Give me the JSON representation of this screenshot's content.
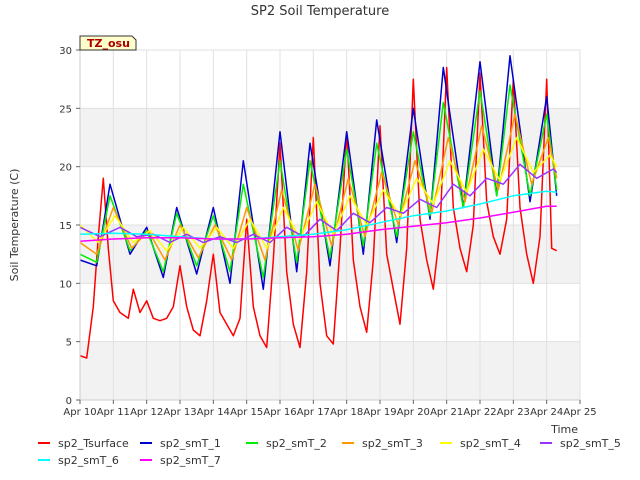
{
  "chart_data": {
    "type": "line",
    "title": "SP2 Soil Temperature",
    "xlabel": "Time",
    "ylabel": "Soil Temperature (C)",
    "xlim": [
      10,
      25
    ],
    "ylim": [
      0,
      30
    ],
    "xticks": [
      {
        "value": 10,
        "label": "Apr 10"
      },
      {
        "value": 11,
        "label": "Apr 11"
      },
      {
        "value": 12,
        "label": "Apr 12"
      },
      {
        "value": 13,
        "label": "Apr 13"
      },
      {
        "value": 14,
        "label": "Apr 14"
      },
      {
        "value": 15,
        "label": "Apr 15"
      },
      {
        "value": 16,
        "label": "Apr 16"
      },
      {
        "value": 17,
        "label": "Apr 17"
      },
      {
        "value": 18,
        "label": "Apr 18"
      },
      {
        "value": 19,
        "label": "Apr 19"
      },
      {
        "value": 20,
        "label": "Apr 20"
      },
      {
        "value": 21,
        "label": "Apr 21"
      },
      {
        "value": 22,
        "label": "Apr 22"
      },
      {
        "value": 23,
        "label": "Apr 23"
      },
      {
        "value": 24,
        "label": "Apr 24"
      },
      {
        "value": 25,
        "label": "Apr 25"
      }
    ],
    "yticks": [
      0,
      5,
      10,
      15,
      20,
      25,
      30
    ],
    "annotation": "TZ_osu",
    "legend_position": "bottom",
    "series": [
      {
        "name": "sp2_Tsurface",
        "color": "#ff0000",
        "x": [
          10.0,
          10.2,
          10.4,
          10.55,
          10.7,
          10.85,
          11.0,
          11.2,
          11.45,
          11.6,
          11.8,
          12.0,
          12.2,
          12.4,
          12.6,
          12.8,
          13.0,
          13.2,
          13.4,
          13.6,
          13.8,
          14.0,
          14.2,
          14.4,
          14.6,
          14.8,
          15.0,
          15.2,
          15.4,
          15.6,
          15.8,
          16.0,
          16.2,
          16.4,
          16.6,
          16.8,
          17.0,
          17.2,
          17.4,
          17.6,
          17.8,
          18.0,
          18.2,
          18.4,
          18.6,
          18.8,
          19.0,
          19.2,
          19.4,
          19.6,
          19.8,
          20.0,
          20.2,
          20.4,
          20.6,
          20.8,
          21.0,
          21.2,
          21.4,
          21.6,
          21.8,
          22.0,
          22.2,
          22.4,
          22.6,
          22.8,
          23.0,
          23.2,
          23.4,
          23.6,
          23.8,
          24.0,
          24.15,
          24.3
        ],
        "y": [
          3.8,
          3.6,
          8.0,
          14.0,
          19.0,
          13.0,
          8.5,
          7.5,
          7.0,
          9.5,
          7.5,
          8.5,
          7.0,
          6.8,
          7.0,
          8.0,
          11.5,
          8.0,
          6.0,
          5.5,
          8.5,
          12.5,
          7.5,
          6.5,
          5.5,
          7.0,
          15.5,
          8.0,
          5.5,
          4.5,
          12.0,
          22.0,
          11.0,
          6.5,
          4.5,
          11.0,
          22.5,
          10.0,
          5.5,
          4.8,
          13.0,
          23.0,
          12.0,
          8.0,
          5.8,
          12.0,
          23.5,
          12.5,
          9.5,
          6.5,
          13.0,
          27.5,
          15.5,
          12.0,
          9.5,
          14.5,
          28.5,
          16.5,
          13.0,
          11.0,
          15.0,
          28.0,
          17.0,
          14.0,
          12.5,
          15.5,
          27.5,
          16.5,
          12.5,
          10.0,
          14.0,
          27.5,
          13.0,
          12.8
        ]
      },
      {
        "name": "sp2_smT_1",
        "color": "#0000cc",
        "x": [
          10.0,
          10.5,
          10.9,
          11.5,
          12.0,
          12.5,
          12.9,
          13.5,
          14.0,
          14.5,
          14.9,
          15.5,
          16.0,
          16.5,
          16.9,
          17.5,
          18.0,
          18.5,
          18.9,
          19.5,
          20.0,
          20.5,
          20.9,
          21.5,
          22.0,
          22.5,
          22.9,
          23.5,
          24.0,
          24.3
        ],
        "y": [
          12.0,
          11.5,
          18.5,
          12.5,
          14.8,
          10.5,
          16.5,
          10.8,
          16.5,
          10.0,
          20.5,
          9.5,
          23.0,
          11.0,
          22.0,
          11.5,
          23.0,
          12.5,
          24.0,
          13.5,
          25.0,
          15.5,
          28.5,
          16.5,
          29.0,
          17.5,
          29.5,
          17.0,
          26.0,
          17.5
        ]
      },
      {
        "name": "sp2_smT_2",
        "color": "#00ee00",
        "x": [
          10.0,
          10.5,
          10.9,
          11.5,
          12.0,
          12.5,
          12.9,
          13.5,
          14.0,
          14.5,
          14.9,
          15.5,
          16.0,
          16.5,
          16.9,
          17.5,
          18.0,
          18.5,
          18.9,
          19.5,
          20.0,
          20.5,
          20.9,
          21.5,
          22.0,
          22.5,
          22.9,
          23.5,
          24.0,
          24.3
        ],
        "y": [
          12.5,
          11.8,
          17.5,
          12.8,
          14.5,
          11.0,
          16.0,
          11.5,
          15.8,
          11.0,
          18.5,
          10.5,
          20.5,
          11.8,
          20.5,
          12.2,
          21.5,
          13.2,
          22.0,
          14.0,
          23.0,
          15.8,
          25.5,
          16.5,
          26.5,
          17.5,
          27.0,
          17.5,
          24.5,
          18.0
        ]
      },
      {
        "name": "sp2_smT_3",
        "color": "#ff9900",
        "x": [
          10.0,
          10.5,
          11.0,
          11.55,
          12.05,
          12.55,
          13.0,
          13.55,
          14.05,
          14.55,
          15.0,
          15.55,
          16.05,
          16.55,
          17.05,
          17.55,
          18.05,
          18.55,
          19.05,
          19.55,
          20.05,
          20.55,
          21.05,
          21.55,
          22.05,
          22.55,
          23.05,
          23.55,
          24.05,
          24.3
        ],
        "y": [
          13.5,
          12.5,
          16.5,
          13.0,
          14.5,
          12.0,
          15.0,
          12.2,
          15.0,
          12.0,
          16.5,
          12.0,
          18.0,
          12.8,
          18.5,
          13.2,
          19.0,
          14.0,
          19.5,
          15.0,
          20.5,
          16.0,
          22.5,
          17.0,
          23.5,
          18.0,
          24.5,
          18.5,
          22.5,
          19.0
        ]
      },
      {
        "name": "sp2_smT_4",
        "color": "#ffff00",
        "x": [
          10.0,
          10.55,
          11.05,
          11.6,
          12.1,
          12.6,
          13.1,
          13.6,
          14.1,
          14.6,
          15.1,
          15.6,
          16.1,
          16.6,
          17.1,
          17.6,
          18.1,
          18.6,
          19.1,
          19.6,
          20.1,
          20.6,
          21.1,
          21.6,
          22.1,
          22.6,
          23.1,
          23.6,
          24.1,
          24.3
        ],
        "y": [
          15.0,
          13.5,
          15.8,
          13.5,
          14.5,
          12.8,
          14.8,
          13.0,
          14.8,
          13.0,
          15.5,
          13.0,
          16.5,
          13.8,
          17.0,
          14.2,
          17.5,
          15.0,
          18.0,
          15.8,
          19.0,
          16.8,
          20.5,
          17.8,
          21.5,
          18.8,
          22.5,
          19.5,
          21.0,
          20.0
        ]
      },
      {
        "name": "sp2_smT_5",
        "color": "#9933ff",
        "x": [
          10.0,
          10.6,
          11.2,
          11.7,
          12.2,
          12.7,
          13.2,
          13.7,
          14.2,
          14.7,
          15.2,
          15.7,
          16.2,
          16.7,
          17.2,
          17.7,
          18.2,
          18.7,
          19.2,
          19.7,
          20.2,
          20.7,
          21.2,
          21.7,
          22.2,
          22.7,
          23.2,
          23.7,
          24.2,
          24.3
        ],
        "y": [
          14.8,
          14.0,
          14.8,
          14.0,
          14.2,
          13.5,
          14.2,
          13.5,
          14.0,
          13.5,
          14.2,
          13.5,
          14.8,
          14.0,
          15.5,
          14.5,
          16.0,
          15.2,
          16.5,
          16.0,
          17.2,
          16.5,
          18.5,
          17.5,
          19.0,
          18.5,
          20.2,
          19.0,
          19.8,
          19.5
        ]
      },
      {
        "name": "sp2_smT_6",
        "color": "#00ffff",
        "x": [
          10.0,
          11.0,
          12.0,
          13.0,
          14.0,
          15.0,
          16.0,
          17.0,
          18.0,
          19.0,
          20.0,
          21.0,
          22.0,
          23.0,
          24.0,
          24.3
        ],
        "y": [
          14.2,
          14.3,
          14.2,
          14.0,
          13.8,
          13.8,
          14.0,
          14.2,
          14.6,
          15.2,
          15.8,
          16.2,
          16.8,
          17.5,
          17.9,
          17.8
        ]
      },
      {
        "name": "sp2_smT_7",
        "color": "#ff00ff",
        "x": [
          10.0,
          11.0,
          12.0,
          13.0,
          14.0,
          15.0,
          16.0,
          17.0,
          18.0,
          19.0,
          20.0,
          21.0,
          22.0,
          23.0,
          24.0,
          24.3
        ],
        "y": [
          13.6,
          13.8,
          13.9,
          13.9,
          13.8,
          13.8,
          13.9,
          14.0,
          14.2,
          14.6,
          14.9,
          15.2,
          15.6,
          16.1,
          16.6,
          16.6
        ]
      }
    ]
  }
}
